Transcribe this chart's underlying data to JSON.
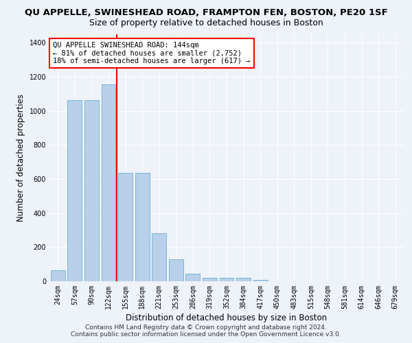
{
  "title": "QU APPELLE, SWINESHEAD ROAD, FRAMPTON FEN, BOSTON, PE20 1SF",
  "subtitle": "Size of property relative to detached houses in Boston",
  "xlabel": "Distribution of detached houses by size in Boston",
  "ylabel": "Number of detached properties",
  "categories": [
    "24sqm",
    "57sqm",
    "90sqm",
    "122sqm",
    "155sqm",
    "188sqm",
    "221sqm",
    "253sqm",
    "286sqm",
    "319sqm",
    "352sqm",
    "384sqm",
    "417sqm",
    "450sqm",
    "483sqm",
    "515sqm",
    "548sqm",
    "581sqm",
    "614sqm",
    "646sqm",
    "679sqm"
  ],
  "values": [
    65,
    1065,
    1065,
    1155,
    635,
    635,
    280,
    130,
    45,
    20,
    20,
    20,
    10,
    0,
    0,
    0,
    0,
    0,
    0,
    0,
    0
  ],
  "bar_color": "#b8d0ea",
  "bar_edge_color": "#6aaed6",
  "annotation_line1": "QU APPELLE SWINESHEAD ROAD: 144sqm",
  "annotation_line2": "← 81% of detached houses are smaller (2,752)",
  "annotation_line3": "18% of semi-detached houses are larger (617) →",
  "ylim": [
    0,
    1450
  ],
  "yticks": [
    0,
    200,
    400,
    600,
    800,
    1000,
    1200,
    1400
  ],
  "footer1": "Contains HM Land Registry data © Crown copyright and database right 2024.",
  "footer2": "Contains public sector information licensed under the Open Government Licence v3.0.",
  "background_color": "#eef2f9",
  "grid_color": "#ffffff",
  "title_fontsize": 9.5,
  "subtitle_fontsize": 9,
  "axis_label_fontsize": 8.5,
  "tick_fontsize": 7,
  "footer_fontsize": 6.5,
  "red_line_index": 4,
  "annotation_fontsize": 7.5
}
